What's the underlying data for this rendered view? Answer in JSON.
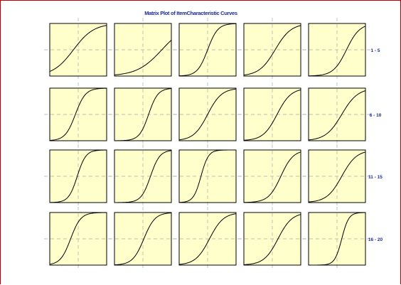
{
  "chart_data": {
    "type": "line",
    "title": "Matrix Plot of ItemCharacteristic Curves",
    "row_labels": [
      "1 - 5",
      "6 - 10",
      "11 - 15",
      "16 - 20"
    ],
    "theta_range": [
      -3,
      3
    ],
    "ylim": [
      0,
      1
    ],
    "grid": true,
    "colors": {
      "panel_fill": "#ffffcc",
      "curve": "#000000",
      "grid": "#aaaaaa",
      "title": "#1a2a9e",
      "row_label": "#1a2a9e",
      "frame": "#c00000"
    },
    "items": [
      {
        "item": 1,
        "a": 0.55,
        "b": -0.5
      },
      {
        "item": 2,
        "a": 0.45,
        "b": 2.0
      },
      {
        "item": 3,
        "a": 1.1,
        "b": 0.0
      },
      {
        "item": 4,
        "a": 0.7,
        "b": 0.3
      },
      {
        "item": 5,
        "a": 0.85,
        "b": 1.0
      },
      {
        "item": 6,
        "a": 1.1,
        "b": -0.3
      },
      {
        "item": 7,
        "a": 1.2,
        "b": 0.6
      },
      {
        "item": 8,
        "a": 0.8,
        "b": 0.0
      },
      {
        "item": 9,
        "a": 0.8,
        "b": 0.5
      },
      {
        "item": 10,
        "a": 0.7,
        "b": 0.5
      },
      {
        "item": 11,
        "a": 1.3,
        "b": -0.1
      },
      {
        "item": 12,
        "a": 1.2,
        "b": 0.8
      },
      {
        "item": 13,
        "a": 1.5,
        "b": -0.7
      },
      {
        "item": 14,
        "a": 0.9,
        "b": 0.9
      },
      {
        "item": 15,
        "a": 0.75,
        "b": 0.5
      },
      {
        "item": 16,
        "a": 1.1,
        "b": -0.8
      },
      {
        "item": 17,
        "a": 1.0,
        "b": 0.1
      },
      {
        "item": 18,
        "a": 0.8,
        "b": 0.2
      },
      {
        "item": 19,
        "a": 0.8,
        "b": 0.6
      },
      {
        "item": 20,
        "a": 1.6,
        "b": 0.5
      }
    ]
  }
}
